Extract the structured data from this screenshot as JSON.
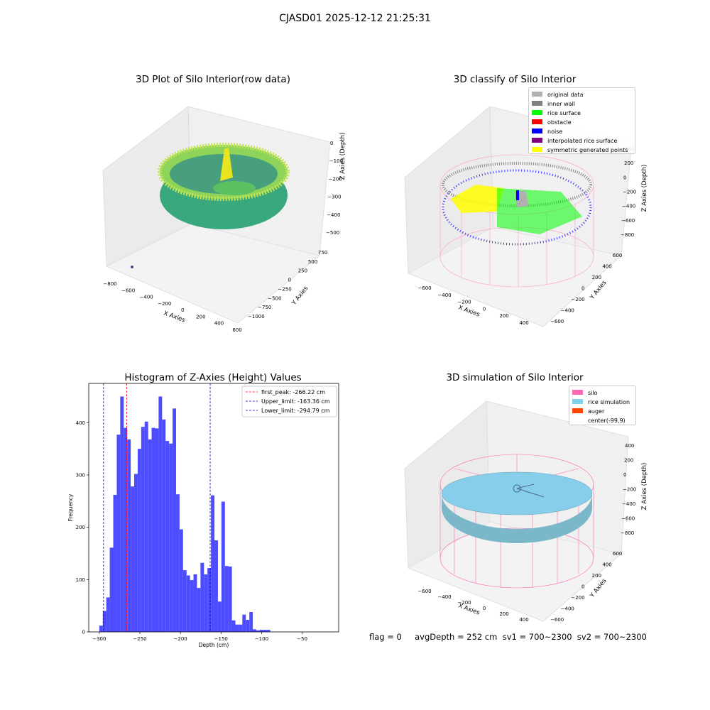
{
  "figure": {
    "suptitle": "CJASD01 2025-12-12 21:25:31",
    "footer": "flag = 0     avgDepth = 252 cm  sv1 = 700~2300  sv2 = 700~2300"
  },
  "colors": {
    "hist_bar": "#4d4dff",
    "first_peak": "#ff0000",
    "limit_lines": "#0000cc",
    "silo": "#ff69b4",
    "rice_sim": "#87ceeb",
    "auger": "#ff4500",
    "orig": "#b0b0b0",
    "inner_wall": "#808080",
    "rice_surface": "#00ff00",
    "obstacle": "#ff0000",
    "noise": "#0000ff",
    "interp": "#800080",
    "sym": "#ffff00"
  },
  "panels": {
    "p1": {
      "title": "3D Plot of Silo Interior(row data)",
      "xlabel": "X Axies",
      "ylabel": "Y Axies",
      "zlabel": "Z Axies (Depth)",
      "xticks": [
        "−800",
        "−600",
        "−400",
        "−200",
        "0",
        "200",
        "400",
        "600"
      ],
      "yticks": [
        "750",
        "500",
        "250",
        "0",
        "−250",
        "−500",
        "−750",
        "−1000"
      ],
      "zticks": [
        "0",
        "−100",
        "−200",
        "−300",
        "−400",
        "−500"
      ]
    },
    "p2": {
      "title": "3D classify of Silo Interior",
      "xlabel": "X Axies",
      "ylabel": "Y Axies",
      "zlabel": "Z Axies (Depth)",
      "xticks": [
        "−600",
        "−400",
        "−200",
        "0",
        "200",
        "400"
      ],
      "yticks": [
        "600",
        "400",
        "200",
        "0",
        "−200",
        "−400",
        "−600"
      ],
      "zticks": [
        "400",
        "200",
        "0",
        "−200",
        "−400",
        "−600",
        "−800"
      ],
      "legend": [
        {
          "label": "original data",
          "color": "#b0b0b0"
        },
        {
          "label": "inner wall",
          "color": "#808080"
        },
        {
          "label": "rice surface",
          "color": "#00ff00"
        },
        {
          "label": "obstacle",
          "color": "#ff0000"
        },
        {
          "label": "noise",
          "color": "#0000ff"
        },
        {
          "label": "interpolated rice surface",
          "color": "#800080"
        },
        {
          "label": "symmetric generated points",
          "color": "#ffff00"
        }
      ]
    },
    "p4": {
      "title": "3D simulation of Silo Interior",
      "xlabel": "X Axies",
      "ylabel": "Y Axies",
      "zlabel": "Z Axies (Depth)",
      "xticks": [
        "−600",
        "−400",
        "−200",
        "0",
        "200",
        "400"
      ],
      "yticks": [
        "600",
        "400",
        "200",
        "0",
        "−200",
        "−400",
        "−600"
      ],
      "zticks": [
        "400",
        "200",
        "0",
        "−200",
        "−400",
        "−600",
        "−800"
      ],
      "legend": [
        {
          "label": "silo",
          "color": "#ff69b4"
        },
        {
          "label": "rice simulation",
          "color": "#87ceeb"
        },
        {
          "label": "auger",
          "color": "#ff4500"
        },
        {
          "label": "center(-99,9)",
          "color": ""
        }
      ]
    }
  },
  "chart_data": [
    {
      "type": "histogram",
      "title": "Histogram of Z-Axies (Height) Values",
      "xlabel": "Depth (cm)",
      "ylabel": "Frequency",
      "xlim": [
        -313,
        -5
      ],
      "ylim": [
        0,
        475
      ],
      "xticks": [
        -300,
        -250,
        -200,
        -150,
        -100,
        -50
      ],
      "yticks": [
        0,
        100,
        200,
        300,
        400
      ],
      "bin_start": -300,
      "bin_width": 4.3,
      "values": [
        12,
        40,
        66,
        161,
        262,
        377,
        450,
        390,
        368,
        278,
        302,
        350,
        392,
        402,
        368,
        390,
        389,
        450,
        406,
        365,
        360,
        427,
        263,
        196,
        118,
        108,
        99,
        110,
        84,
        132,
        110,
        122,
        261,
        175,
        58,
        249,
        126,
        125,
        22,
        14,
        14,
        33,
        23,
        38,
        5,
        3,
        4,
        4,
        4
      ],
      "vlines": [
        {
          "x": -266.22,
          "label": "first_peak: -266.22 cm",
          "color": "#ff0000"
        },
        {
          "x": -163.36,
          "label": "Upper_limit: -163.36 cm",
          "color": "#0000cc"
        },
        {
          "x": -294.79,
          "label": "Lower_limit: -294.79 cm",
          "color": "#0000cc"
        }
      ],
      "legend_position": "top-right"
    }
  ]
}
